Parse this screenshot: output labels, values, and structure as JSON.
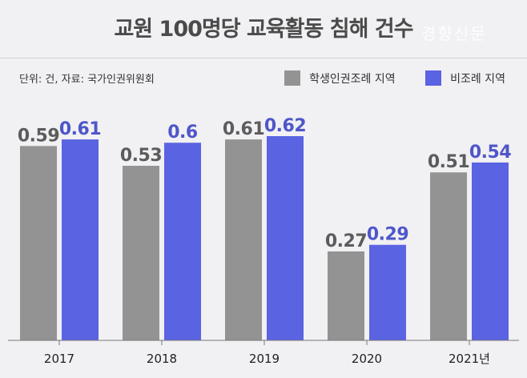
{
  "title": "교원 100명당 교육활동 침해 건수",
  "watermark": "경향신문",
  "unit_source": "단위: 건, 자료: 국가인권위원회",
  "colors": {
    "series1": "#939393",
    "series2": "#5a63e2",
    "label1": "#5c5c5c",
    "label2": "#4e56c9"
  },
  "chart_data": {
    "type": "bar",
    "categories": [
      "2017",
      "2018",
      "2019",
      "2020",
      "2021년"
    ],
    "series": [
      {
        "name": "학생인권조례 지역",
        "values": [
          0.59,
          0.53,
          0.61,
          0.27,
          0.51
        ],
        "labels": [
          "0.59",
          "0.53",
          "0.61",
          "0.27",
          "0.51"
        ]
      },
      {
        "name": "비조례 지역",
        "values": [
          0.61,
          0.6,
          0.62,
          0.29,
          0.54
        ],
        "labels": [
          "0.61",
          "0.6",
          "0.62",
          "0.29",
          "0.54"
        ]
      }
    ],
    "ylim": [
      0,
      0.62
    ],
    "legend_position": "top-right"
  }
}
